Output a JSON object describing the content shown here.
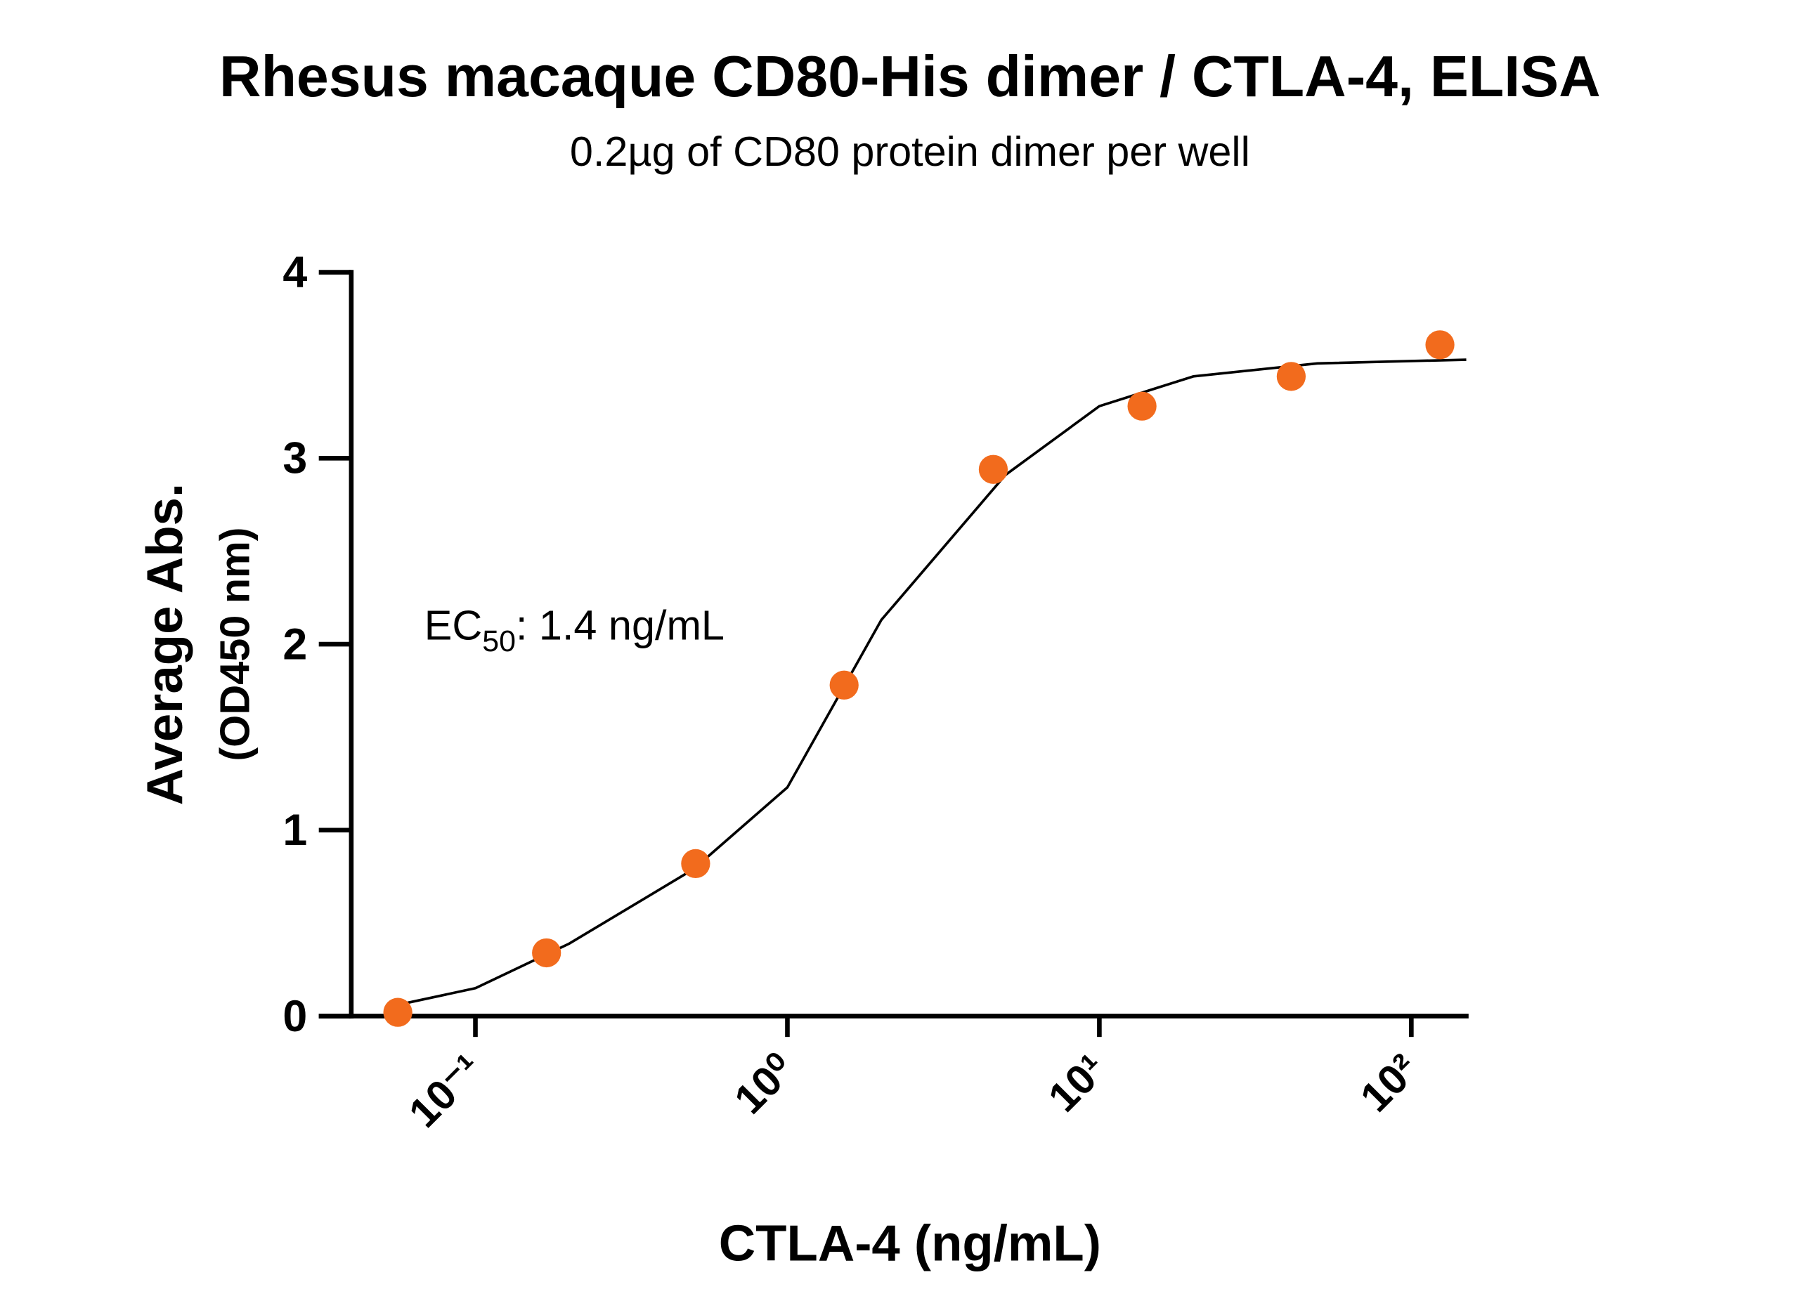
{
  "chart_data": {
    "type": "scatter",
    "title": "Rhesus macaque CD80-His dimer / CTLA-4, ELISA",
    "subtitle": "0.2µg of CD80 protein dimer per well",
    "x_label": "CTLA-4 (ng/mL)",
    "y_label": [
      "Average Abs.",
      "(OD450 nm)"
    ],
    "annotation": {
      "text": "EC",
      "subscript": "50",
      "rest": ": 1.4 ng/mL"
    },
    "xscale": "log",
    "xlim": [
      0.04,
      150
    ],
    "xticks": [
      {
        "value": 0.1,
        "label": "10⁻¹"
      },
      {
        "value": 1,
        "label": "10⁰"
      },
      {
        "value": 10,
        "label": "10¹"
      },
      {
        "value": 100,
        "label": "10²"
      }
    ],
    "ylim": [
      0,
      4
    ],
    "yticks": [
      0,
      1,
      2,
      3,
      4
    ],
    "grid": false,
    "series": [
      {
        "type": "scatter",
        "color": "#f26b1d",
        "x": [
          0.0564,
          0.169,
          0.508,
          1.52,
          4.57,
          13.7,
          41.2,
          123.5
        ],
        "values": [
          0.02,
          0.34,
          0.82,
          1.78,
          2.94,
          3.28,
          3.44,
          3.61
        ]
      },
      {
        "type": "line",
        "color": "#000000",
        "x": [
          0.06,
          0.1,
          0.2,
          0.5,
          1,
          2,
          5,
          10,
          20,
          50,
          150
        ],
        "values": [
          0.07,
          0.15,
          0.39,
          0.79,
          1.23,
          2.13,
          2.91,
          3.28,
          3.44,
          3.51,
          3.53
        ]
      }
    ]
  }
}
